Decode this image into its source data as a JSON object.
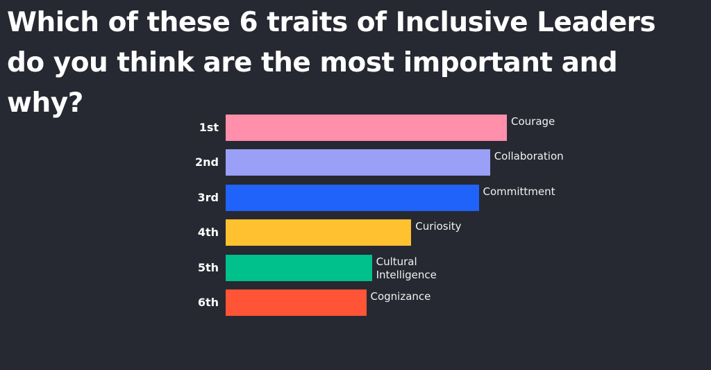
{
  "chart_data": {
    "type": "ranking",
    "title": "Which of these 6 traits of Inclusive Leaders do you think are the most important and why?",
    "categories": [
      "1st",
      "2nd",
      "3rd",
      "4th",
      "5th",
      "6th"
    ],
    "labels": [
      "Courage",
      "Collaboration",
      "Committment",
      "Curiosity",
      "Cultural Intelligence",
      "Cognizance"
    ],
    "values": [
      100,
      94,
      90,
      66,
      52,
      50
    ],
    "colors": [
      "#ff8fab",
      "#9aa0f7",
      "#1f63fb",
      "#ffc12f",
      "#00c08b",
      "#ff5436"
    ],
    "xlim": [
      0,
      100
    ]
  }
}
